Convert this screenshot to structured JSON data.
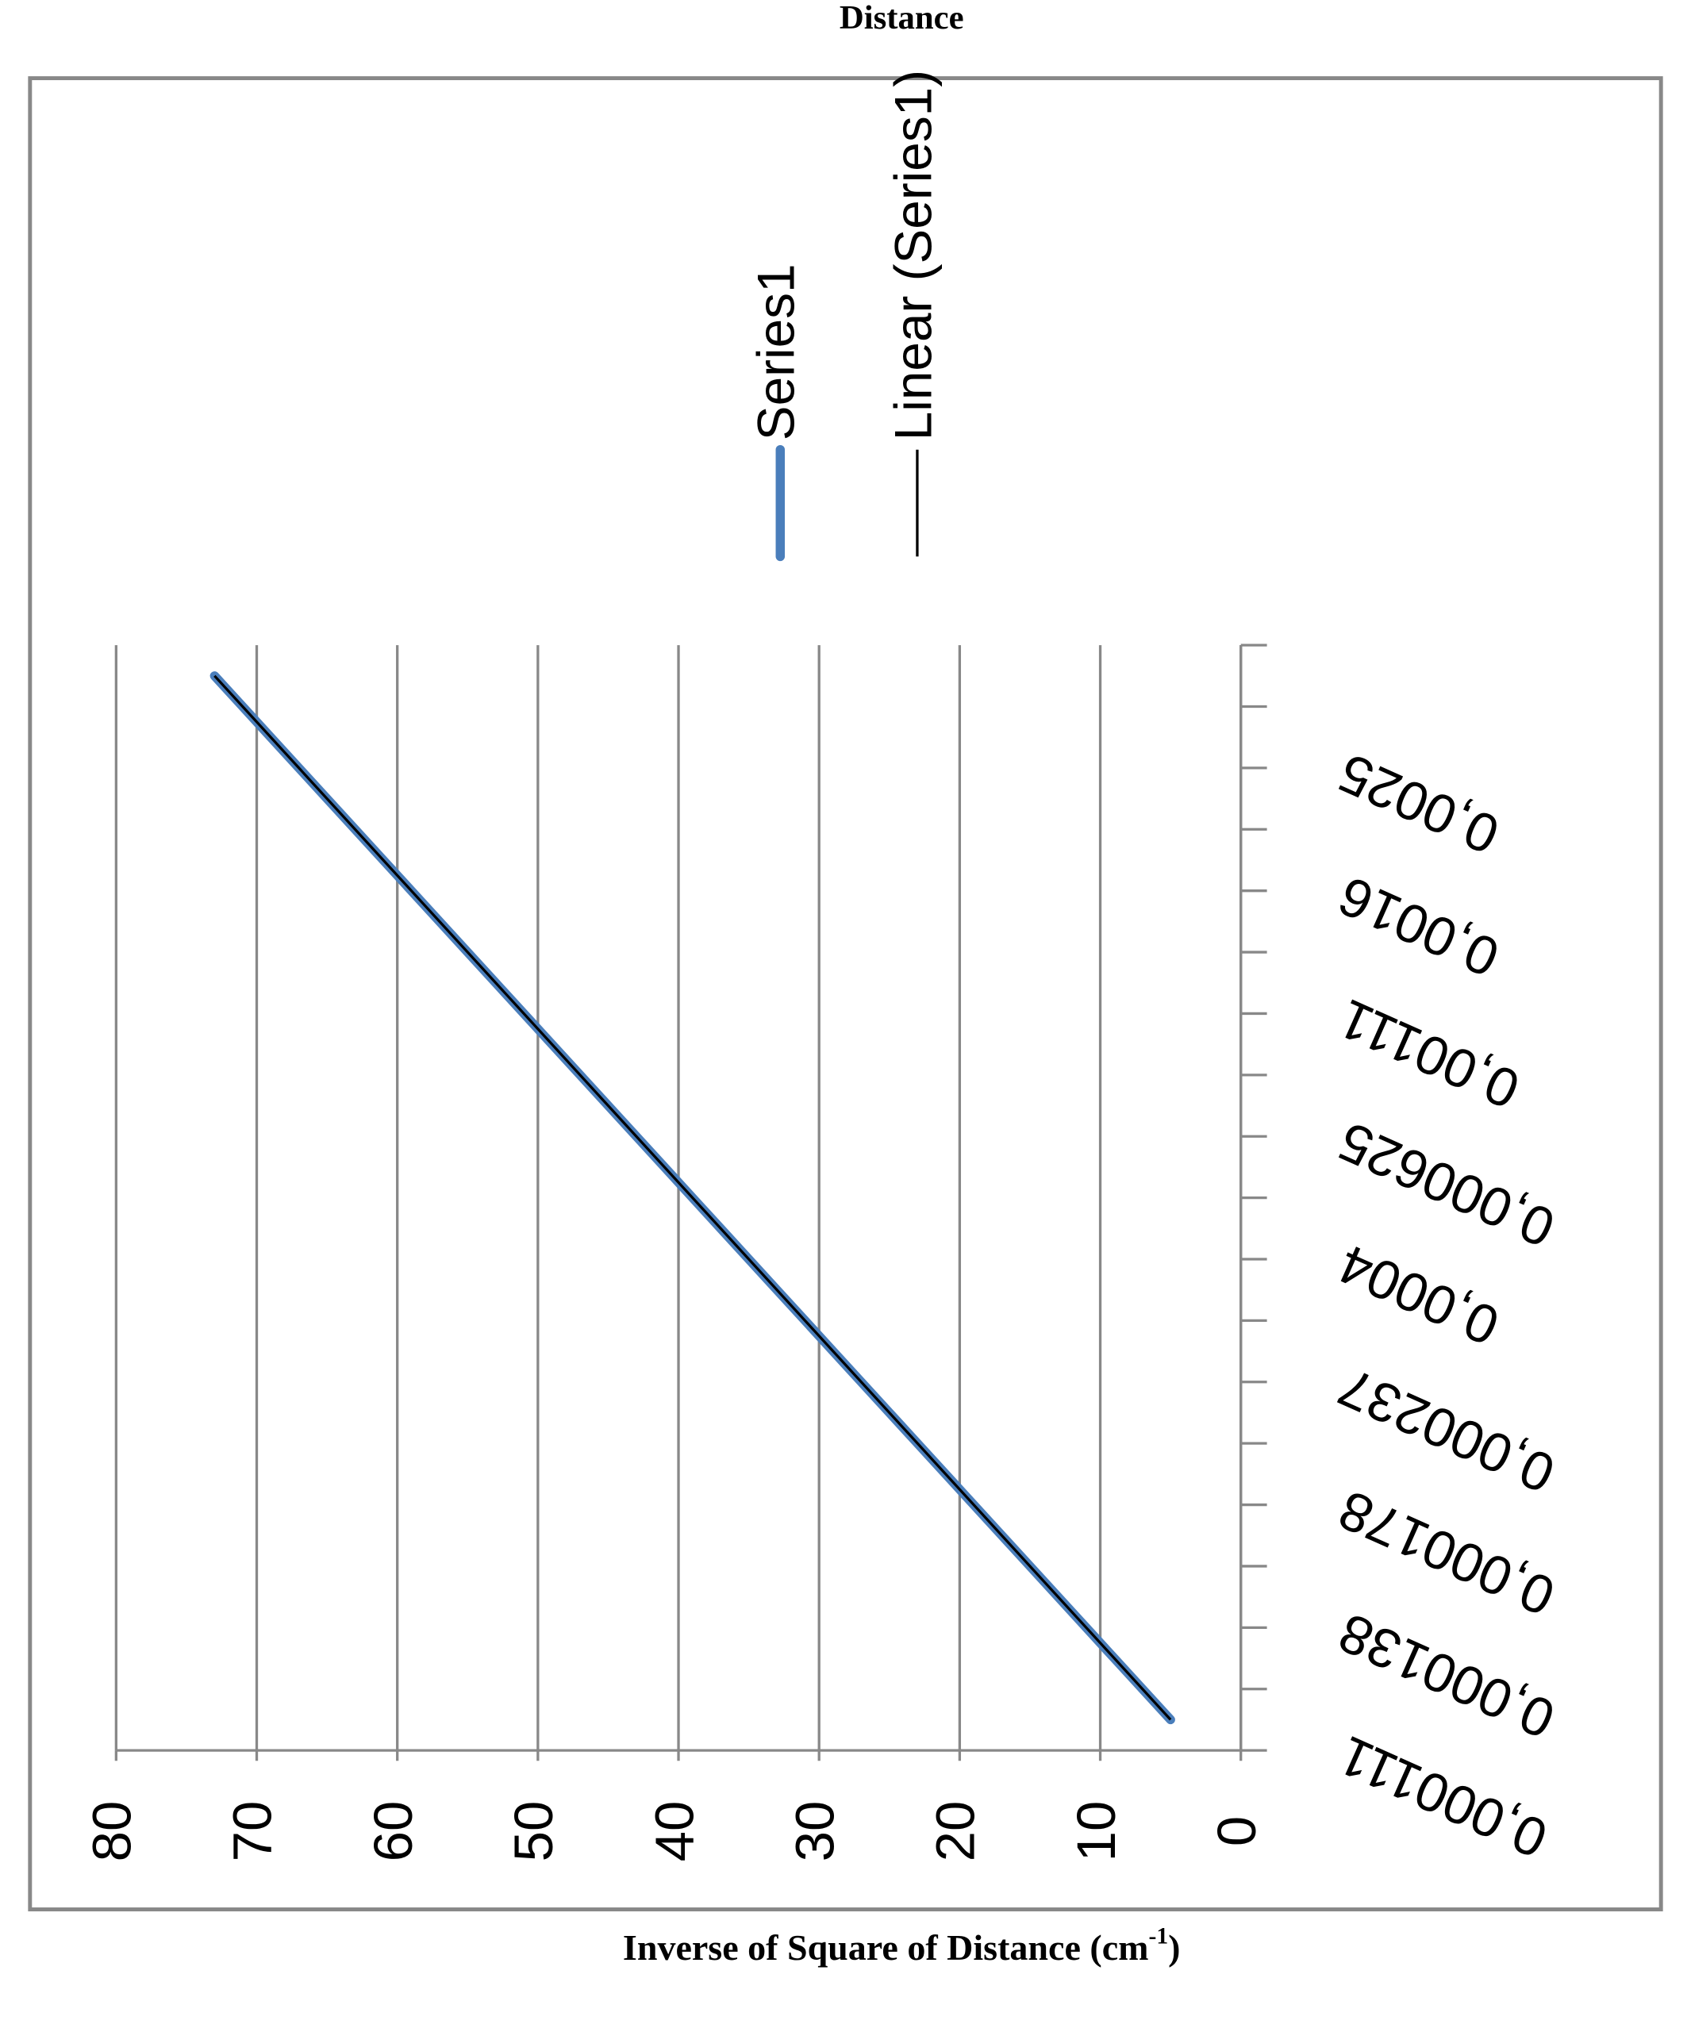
{
  "chart_data": {
    "type": "line",
    "title": "Distance",
    "x_label": [
      "Inverse of Square of Distance (cm",
      "-1",
      ")"
    ],
    "categories": [
      "0,000111",
      null,
      "0,000138",
      null,
      "0,000178",
      null,
      "0,000237",
      null,
      "0,0004",
      null,
      "0,000625",
      null,
      "0,00111",
      null,
      "0,0016",
      null,
      "0,0025",
      null
    ],
    "series": [
      {
        "name": "Series1",
        "color": "#4a7ebb",
        "values": [
          5,
          9,
          13,
          17,
          21,
          25,
          29,
          33,
          37,
          41,
          45,
          49,
          53,
          57,
          61,
          65,
          69,
          73
        ]
      }
    ],
    "trendline": {
      "name": "Linear (Series1)",
      "color": "#000000"
    },
    "ylim": [
      0,
      80
    ],
    "yticks": [
      0,
      10,
      20,
      30,
      40,
      50,
      60,
      70,
      80
    ],
    "grid": true
  }
}
